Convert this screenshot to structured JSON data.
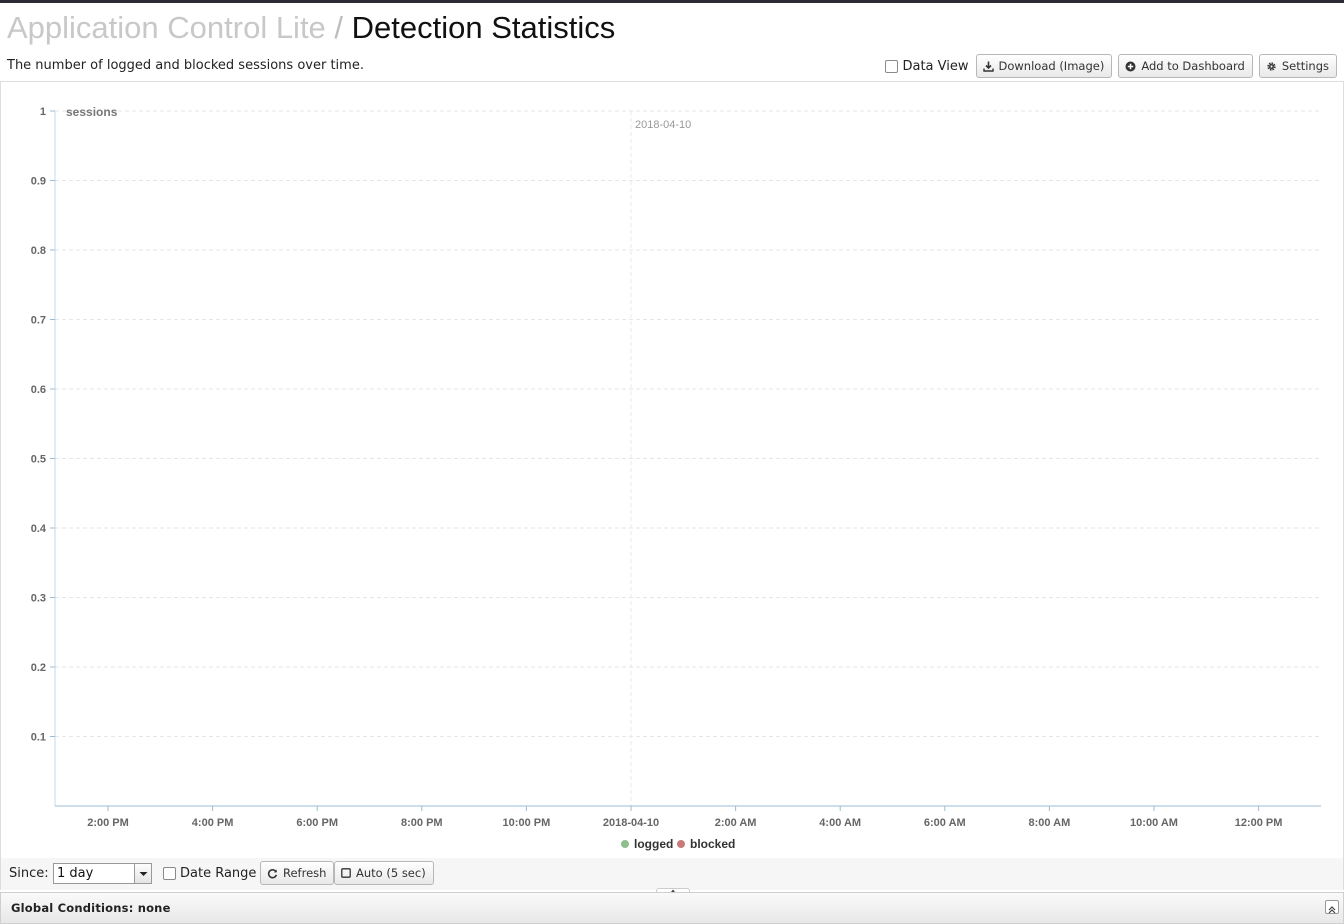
{
  "header": {
    "breadcrumb": "Application Control Lite",
    "separator": "/",
    "title": "Detection Statistics",
    "subtitle": "The number of logged and blocked sessions over time."
  },
  "toolbar": {
    "data_view_label": "Data View",
    "data_view_checked": false,
    "download_label": "Download (Image)",
    "dashboard_label": "Add to Dashboard",
    "settings_label": "Settings"
  },
  "chart_data": {
    "type": "line",
    "ylabel": "sessions",
    "ylim": [
      0,
      1
    ],
    "y_ticks": [
      "0.1",
      "0.2",
      "0.3",
      "0.4",
      "0.5",
      "0.6",
      "0.7",
      "0.8",
      "0.9",
      "1"
    ],
    "x_ticks": [
      "2:00 PM",
      "4:00 PM",
      "6:00 PM",
      "8:00 PM",
      "10:00 PM",
      "2018-04-10",
      "2:00 AM",
      "4:00 AM",
      "6:00 AM",
      "8:00 AM",
      "10:00 AM",
      "12:00 PM"
    ],
    "plot_band_label": "2018-04-10",
    "grid": true,
    "legend_position": "bottom-center",
    "series": [
      {
        "name": "logged",
        "color": "#8fbf8f",
        "values": []
      },
      {
        "name": "blocked",
        "color": "#c97a7a",
        "values": []
      }
    ]
  },
  "controls": {
    "since_label": "Since:",
    "since_value": "1 day",
    "date_range_label": "Date Range",
    "refresh_label": "Refresh",
    "auto_label": "Auto (5 sec)"
  },
  "footer": {
    "global_conditions": "Global Conditions: none"
  }
}
